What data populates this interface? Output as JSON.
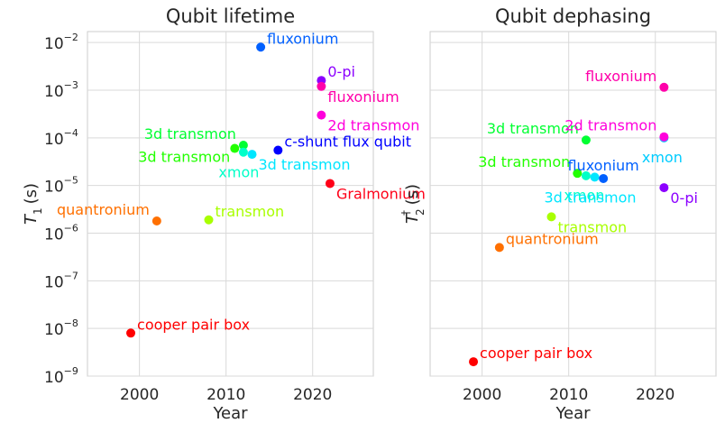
{
  "chart_data": [
    {
      "type": "scatter",
      "title": "Qubit lifetime",
      "xlabel": "Year",
      "ylabel": "T",
      "ylabel_sub": "1",
      "ylabel_unit": "(s)",
      "xlim": [
        1994,
        2027
      ],
      "ylim_log10": [
        -9,
        -1.77
      ],
      "yscale": "log",
      "grid": true,
      "xticks": [
        2000,
        2010,
        2020
      ],
      "yticks": [
        {
          "base": "10",
          "exp": "−2",
          "v": -2
        },
        {
          "base": "10",
          "exp": "−3",
          "v": -3
        },
        {
          "base": "10",
          "exp": "−4",
          "v": -4
        },
        {
          "base": "10",
          "exp": "−5",
          "v": -5
        },
        {
          "base": "10",
          "exp": "−6",
          "v": -6
        },
        {
          "base": "10",
          "exp": "−7",
          "v": -7
        },
        {
          "base": "10",
          "exp": "−8",
          "v": -8
        },
        {
          "base": "10",
          "exp": "−9",
          "v": -9
        }
      ],
      "points": [
        {
          "label": "cooper pair box",
          "year": 1999,
          "value": 8e-09,
          "color": "#ff0000",
          "label_pos": "upper-right"
        },
        {
          "label": "quantronium",
          "year": 2002,
          "value": 1.8e-06,
          "color": "#ff7000",
          "label_pos": "upper-left"
        },
        {
          "label": "transmon",
          "year": 2008,
          "value": 1.9e-06,
          "color": "#a8ff00",
          "label_pos": "upper-right"
        },
        {
          "label": "3d transmon",
          "year": 2011,
          "value": 6e-05,
          "color": "#22ff00",
          "label_pos": "lower-left"
        },
        {
          "label": "3d transmon",
          "year": 2012,
          "value": 7e-05,
          "color": "#00ff32",
          "label_pos": "upper-left"
        },
        {
          "label": "xmon",
          "year": 2012,
          "value": 5e-05,
          "color": "#00ffc8",
          "label_pos": "below"
        },
        {
          "label": "3d transmon",
          "year": 2013,
          "value": 4.5e-05,
          "color": "#00e6ff",
          "label_pos": "lower-right"
        },
        {
          "label": "fluxonium",
          "year": 2014,
          "value": 0.008,
          "color": "#0060ff",
          "label_pos": "upper-right"
        },
        {
          "label": "c-shunt flux qubit",
          "year": 2016,
          "value": 5.5e-05,
          "color": "#0000ff",
          "label_pos": "upper-right"
        },
        {
          "label": "0-pi",
          "year": 2021,
          "value": 0.0016,
          "color": "#8c00ff",
          "label_pos": "upper-right"
        },
        {
          "label": "fluxonium",
          "year": 2021,
          "value": 0.0012,
          "color": "#ff00aa",
          "label_pos": "lower-right"
        },
        {
          "label": "2d transmon",
          "year": 2021,
          "value": 0.0003,
          "color": "#ff00dc",
          "label_pos": "lower-right"
        },
        {
          "label": "Gralmonium",
          "year": 2022,
          "value": 1.1e-05,
          "color": "#ff0018",
          "label_pos": "lower-right"
        }
      ]
    },
    {
      "type": "scatter",
      "title": "Qubit dephasing",
      "xlabel": "Year",
      "ylabel": "T",
      "ylabel_sub": "2",
      "ylabel_sup": "†",
      "ylabel_unit": "(s)",
      "xlim": [
        1994,
        2027
      ],
      "ylim_log10": [
        -9,
        -1.77
      ],
      "yscale": "log",
      "grid": true,
      "xticks": [
        2000,
        2010,
        2020
      ],
      "points": [
        {
          "label": "cooper pair box",
          "year": 1999,
          "value": 2e-09,
          "color": "#ff0000",
          "label_pos": "upper-right"
        },
        {
          "label": "quantronium",
          "year": 2002,
          "value": 5e-07,
          "color": "#ff7000",
          "label_pos": "upper-right"
        },
        {
          "label": "transmon",
          "year": 2008,
          "value": 2.2e-06,
          "color": "#a8ff00",
          "label_pos": "lower-right"
        },
        {
          "label": "3d transmon",
          "year": 2011,
          "value": 1.8e-05,
          "color": "#22ff00",
          "label_pos": "upper-left"
        },
        {
          "label": "3d transmon",
          "year": 2012,
          "value": 9e-05,
          "color": "#00ff32",
          "label_pos": "upper-left"
        },
        {
          "label": "xmon",
          "year": 2012,
          "value": 1.6e-05,
          "color": "#00ffc8",
          "label_pos": "below-left"
        },
        {
          "label": "3d transmon",
          "year": 2013,
          "value": 1.5e-05,
          "color": "#00e6ff",
          "label_pos": "below"
        },
        {
          "label": "fluxonium",
          "year": 2014,
          "value": 1.4e-05,
          "color": "#0060ff",
          "label_pos": "upper"
        },
        {
          "label": "0-pi",
          "year": 2021,
          "value": 9e-06,
          "color": "#8c00ff",
          "label_pos": "lower-right"
        },
        {
          "label": "xmon",
          "year": 2021,
          "value": 0.0001,
          "color": "#00ccff",
          "label_pos": "below-left"
        },
        {
          "label": "2d transmon",
          "year": 2021,
          "value": 0.000105,
          "color": "#ff00dc",
          "label_pos": "upper-left"
        },
        {
          "label": "fluxonium",
          "year": 2021,
          "value": 0.00115,
          "color": "#ff00aa",
          "label_pos": "upper-left"
        }
      ]
    }
  ]
}
